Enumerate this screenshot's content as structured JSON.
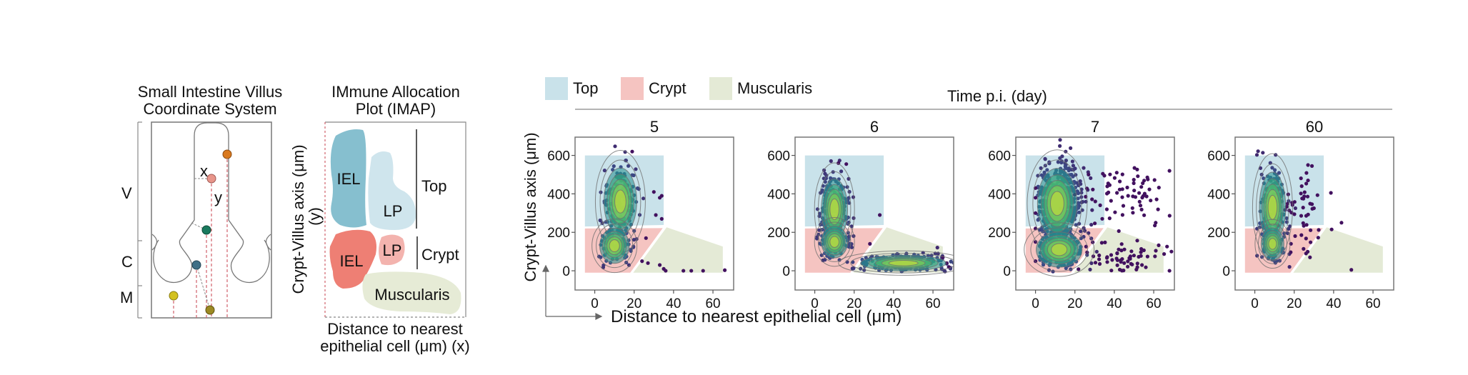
{
  "villus_diagram": {
    "title_line1": "Small Intestine Villus",
    "title_line2": "Coordinate System",
    "zone_labels": [
      "V",
      "C",
      "M"
    ],
    "x_label": "x",
    "y_label": "y",
    "cell_colors": [
      "#d9791e",
      "#e8958a",
      "#1a7a5e",
      "#3e6f86",
      "#d3c11f",
      "#9c8a23"
    ]
  },
  "imap_diagram": {
    "title_line1": "IMmune Allocation",
    "title_line2": "Plot (IMAP)",
    "ylabel": "Crypt-Villus axis (μm)",
    "ylabel_var": "(y)",
    "xlabel_line1": "Distance to nearest",
    "xlabel_line2": "epithelial cell (μm) (x)",
    "top_iel": "IEL",
    "top_lp": "LP",
    "top_label": "Top",
    "crypt_iel": "IEL",
    "crypt_lp": "LP",
    "crypt_label": "Crypt",
    "muscularis": "Muscularis",
    "colors": {
      "top_iel": "#86bfcf",
      "top_lp": "#cfe5ed",
      "crypt_iel": "#ee7f74",
      "crypt_lp": "#f3b3ae",
      "muscularis": "#e6ebd6"
    }
  },
  "chart_data": {
    "type": "scatter",
    "title": "Time p.i. (day)",
    "xlabel": "Distance to nearest epithelial cell (μm)",
    "ylabel": "Crypt-Villus axis (μm)",
    "xlim": [
      -10,
      70.5
    ],
    "ylim": [
      -100,
      695
    ],
    "xticks": [
      0,
      20,
      40,
      60
    ],
    "yticks": [
      0,
      200,
      400,
      600
    ],
    "grid": false,
    "legend_position": "top-left",
    "legend": [
      {
        "label": "Top",
        "color": "#c9e2ea"
      },
      {
        "label": "Crypt",
        "color": "#f5c4c1"
      },
      {
        "label": "Muscularis",
        "color": "#e4ead6"
      }
    ],
    "regions": {
      "top": [
        [
          -5,
          230
        ],
        [
          35,
          238
        ],
        [
          35,
          600
        ],
        [
          -5,
          600
        ]
      ],
      "crypt": [
        [
          -5,
          -10
        ],
        [
          18,
          -10
        ],
        [
          34.5,
          222
        ],
        [
          -5,
          220
        ]
      ],
      "muscularis": [
        [
          19.5,
          -10
        ],
        [
          65,
          -10
        ],
        [
          65,
          126
        ],
        [
          36.5,
          226
        ]
      ]
    },
    "panels": [
      {
        "title": "5",
        "clusters": [
          {
            "cx": 13,
            "cy": 360,
            "sx": 5,
            "sy": 105,
            "n": 170,
            "dense": true
          },
          {
            "cx": 10,
            "cy": 130,
            "sx": 4.5,
            "sy": 55,
            "n": 90,
            "dense": true
          }
        ],
        "outliers": [
          [
            19,
            620
          ],
          [
            30,
            410
          ],
          [
            33,
            380
          ],
          [
            34,
            390
          ],
          [
            31,
            290
          ],
          [
            34,
            270
          ],
          [
            26,
            170
          ],
          [
            24,
            50
          ],
          [
            27,
            40
          ],
          [
            33,
            30
          ],
          [
            35,
            10
          ],
          [
            36,
            0
          ],
          [
            45,
            0
          ],
          [
            49,
            0
          ],
          [
            55,
            0
          ],
          [
            66,
            3
          ]
        ]
      },
      {
        "title": "6",
        "clusters": [
          {
            "cx": 10,
            "cy": 320,
            "sx": 4,
            "sy": 95,
            "n": 220,
            "dense": true
          },
          {
            "cx": 10,
            "cy": 150,
            "sx": 4,
            "sy": 50,
            "n": 130,
            "dense": true
          },
          {
            "cx": 45,
            "cy": 40,
            "sx": 13,
            "sy": 25,
            "n": 220,
            "dense": true
          }
        ],
        "outliers": [
          [
            33,
            290
          ],
          [
            28,
            140
          ],
          [
            65,
            70
          ],
          [
            67,
            40
          ],
          [
            68,
            20
          ],
          [
            12,
            560
          ],
          [
            16,
            555
          ]
        ]
      },
      {
        "title": "7",
        "clusters": [
          {
            "cx": 11,
            "cy": 350,
            "sx": 6,
            "sy": 110,
            "n": 600,
            "dense": true
          },
          {
            "cx": 12,
            "cy": 110,
            "sx": 7,
            "sy": 55,
            "n": 260,
            "dense": true
          },
          {
            "cx": 44,
            "cy": 380,
            "sx": 12,
            "sy": 90,
            "n": 70,
            "dense": false
          },
          {
            "cx": 45,
            "cy": 60,
            "sx": 12,
            "sy": 40,
            "n": 60,
            "dense": false
          }
        ],
        "outliers": [
          [
            0,
            430
          ],
          [
            0,
            380
          ],
          [
            0,
            300
          ],
          [
            0,
            220
          ],
          [
            0,
            150
          ],
          [
            0,
            50
          ],
          [
            61,
            250
          ],
          [
            68,
            520
          ],
          [
            69,
            100
          ],
          [
            68,
            0
          ]
        ]
      },
      {
        "title": "60",
        "clusters": [
          {
            "cx": 9,
            "cy": 330,
            "sx": 4,
            "sy": 110,
            "n": 160,
            "dense": true
          },
          {
            "cx": 9,
            "cy": 140,
            "sx": 3.5,
            "sy": 50,
            "n": 80,
            "dense": true
          },
          {
            "cx": 24,
            "cy": 320,
            "sx": 5,
            "sy": 100,
            "n": 45,
            "dense": false
          }
        ],
        "outliers": [
          [
            44,
            250
          ],
          [
            39,
            215
          ],
          [
            28,
            70
          ],
          [
            26,
            90
          ],
          [
            49,
            5
          ],
          [
            27,
            550
          ],
          [
            29,
            545
          ],
          [
            27,
            470
          ]
        ]
      }
    ]
  }
}
